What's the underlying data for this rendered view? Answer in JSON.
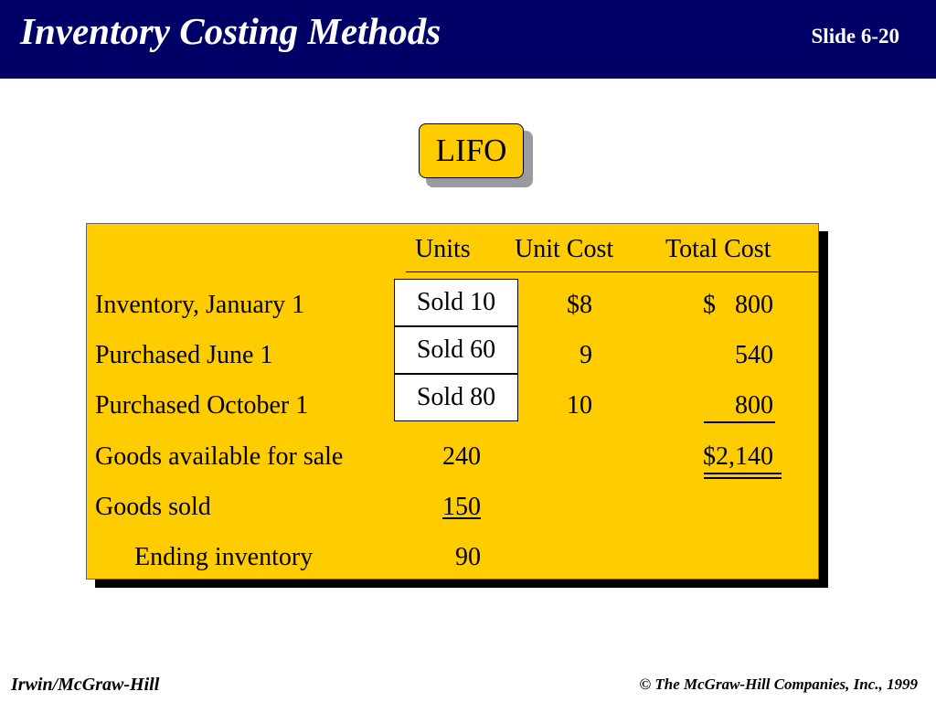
{
  "header": {
    "title": "Inventory Costing Methods",
    "slide_number": "Slide 6-20"
  },
  "method_label": "LIFO",
  "table": {
    "columns": [
      "Units",
      "Unit Cost",
      "Total Cost"
    ],
    "rows": [
      {
        "label": "Inventory, January 1",
        "units": "Sold 10",
        "unit_cost": "$8",
        "total_cost": "$   800"
      },
      {
        "label": "Purchased June 1",
        "units": "Sold 60",
        "unit_cost": "9",
        "total_cost": "540"
      },
      {
        "label": "Purchased October 1",
        "units": "Sold 80",
        "unit_cost": "10",
        "total_cost": "800"
      },
      {
        "label": "Goods available for sale",
        "units": "240",
        "unit_cost": "",
        "total_cost": "$2,140"
      },
      {
        "label": "Goods sold",
        "units": "150",
        "unit_cost": "",
        "total_cost": ""
      },
      {
        "label": "Ending inventory",
        "units": "90",
        "unit_cost": "",
        "total_cost": ""
      }
    ]
  },
  "footer": {
    "publisher": "Irwin/McGraw-Hill",
    "copyright": "© The McGraw-Hill Companies, Inc., 1999"
  },
  "colors": {
    "header_bg": "#000066",
    "panel_bg": "#ffcc00",
    "sold_box_bg": "#ffffff"
  }
}
